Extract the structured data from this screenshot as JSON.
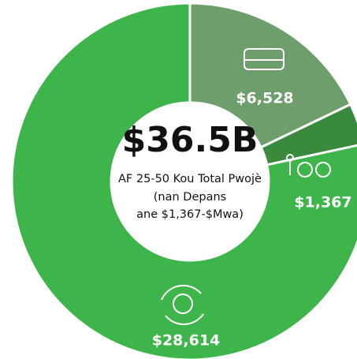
{
  "chart_data": {
    "type": "donut",
    "center_title": "$36.5B",
    "center_text": [
      "AF 25-50 Kou Total Pwojè",
      "(nan Depans",
      "ane $1,367-$Mwa)"
    ],
    "categories": [
      null,
      null,
      null
    ],
    "values": [
      6528,
      1367,
      28614
    ],
    "value_labels": [
      "$6,528",
      "$1,367",
      "$28,614"
    ],
    "colors": [
      "#6f9e6d",
      "#3a8a3d",
      "#3db54a"
    ]
  }
}
